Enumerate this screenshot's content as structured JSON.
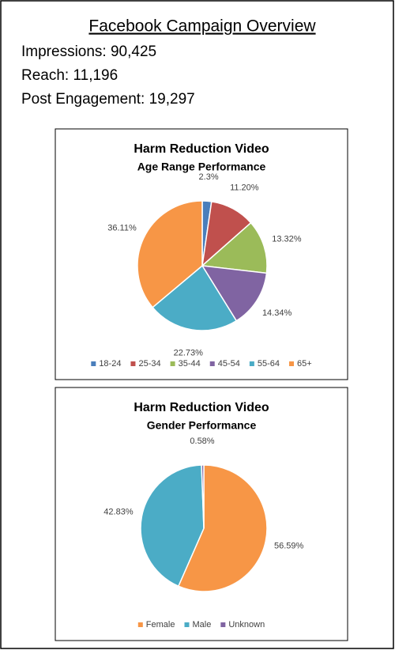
{
  "header": {
    "title": "Facebook Campaign Overview",
    "stats": [
      "Impressions: 90,425",
      "Reach: 11,196",
      "Post Engagement: 19,297"
    ]
  },
  "chart_data": [
    {
      "type": "pie",
      "title": "Harm Reduction Video",
      "subtitle": "Age Range Performance",
      "categories": [
        "18-24",
        "25-34",
        "35-44",
        "45-54",
        "55-64",
        "65+"
      ],
      "values": [
        2.3,
        11.2,
        13.32,
        14.34,
        22.73,
        36.11
      ],
      "value_labels": [
        "2.3%",
        "11.20%",
        "13.32%",
        "14.34%",
        "22.73%",
        "36.11%"
      ],
      "colors": [
        "#4a7ebb",
        "#c0504d",
        "#9bbb59",
        "#8064a2",
        "#4bacc6",
        "#f79646"
      ],
      "legend": "bottom"
    },
    {
      "type": "pie",
      "title": "Harm Reduction Video",
      "subtitle": "Gender Performance",
      "categories": [
        "Female",
        "Male",
        "Unknown"
      ],
      "values": [
        56.59,
        42.83,
        0.58
      ],
      "value_labels": [
        "56.59%",
        "42.83%",
        "0.58%"
      ],
      "colors": [
        "#f79646",
        "#4bacc6",
        "#8064a2"
      ],
      "legend": "bottom"
    }
  ]
}
